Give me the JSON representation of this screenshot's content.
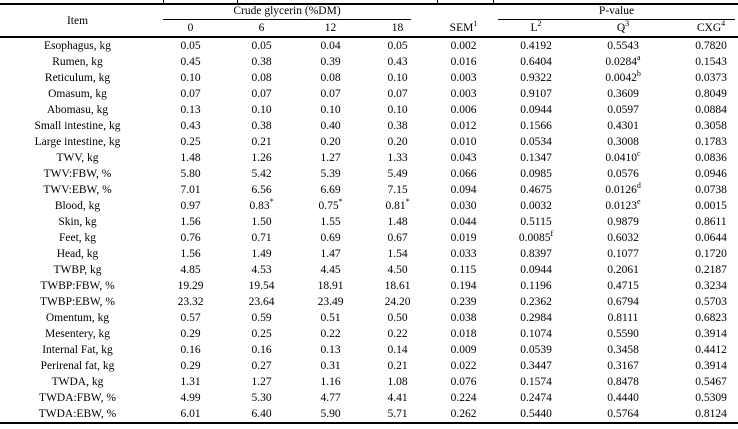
{
  "table": {
    "header": {
      "item": "Item",
      "group_glycerin": "Crude glycerin (%DM)",
      "group_pvalue": "P-value",
      "subcols": [
        {
          "label": "0",
          "sup": ""
        },
        {
          "label": "6",
          "sup": ""
        },
        {
          "label": "12",
          "sup": ""
        },
        {
          "label": "18",
          "sup": ""
        },
        {
          "label": "SEM",
          "sup": "1"
        },
        {
          "label": "L",
          "sup": "2"
        },
        {
          "label": "Q",
          "sup": "3"
        },
        {
          "label": "CXG",
          "sup": "4"
        }
      ]
    },
    "rows": [
      {
        "item": "Esophagus, kg",
        "values": [
          "0.05",
          "0.05",
          "0.04",
          "0.05",
          "0.002",
          "0.4192",
          "0.5543",
          "0.7820"
        ],
        "sups": {}
      },
      {
        "item": "Rumen, kg",
        "values": [
          "0.45",
          "0.38",
          "0.39",
          "0.43",
          "0.016",
          "0.6404",
          "0.0284",
          "0.1543"
        ],
        "sups": {
          "6": "a"
        }
      },
      {
        "item": "Reticulum, kg",
        "values": [
          "0.10",
          "0.08",
          "0.08",
          "0.10",
          "0.003",
          "0.9322",
          "0.0042",
          "0.0373"
        ],
        "sups": {
          "6": "b"
        }
      },
      {
        "item": "Omasum, kg",
        "values": [
          "0.07",
          "0.07",
          "0.07",
          "0.07",
          "0.003",
          "0.9107",
          "0.3609",
          "0.8049"
        ],
        "sups": {}
      },
      {
        "item": "Abomasu, kg",
        "values": [
          "0.13",
          "0.10",
          "0.10",
          "0.10",
          "0.006",
          "0.0944",
          "0.0597",
          "0.0884"
        ],
        "sups": {}
      },
      {
        "item": "Small intestine, kg",
        "values": [
          "0.43",
          "0.38",
          "0.40",
          "0.38",
          "0.012",
          "0.1566",
          "0.4301",
          "0.3058"
        ],
        "sups": {}
      },
      {
        "item": "Large intestine, kg",
        "values": [
          "0.25",
          "0.21",
          "0.20",
          "0.20",
          "0.010",
          "0.0534",
          "0.3008",
          "0.1783"
        ],
        "sups": {}
      },
      {
        "item": "TWV, kg",
        "values": [
          "1.48",
          "1.26",
          "1.27",
          "1.33",
          "0.043",
          "0.1347",
          "0.0410",
          "0.0836"
        ],
        "sups": {
          "6": "c"
        }
      },
      {
        "item": "TWV:FBW, %",
        "values": [
          "5.80",
          "5.42",
          "5.39",
          "5.49",
          "0.066",
          "0.0985",
          "0.0576",
          "0.0946"
        ],
        "sups": {}
      },
      {
        "item": "TWV:EBW, %",
        "values": [
          "7.01",
          "6.56",
          "6.69",
          "7.15",
          "0.094",
          "0.4675",
          "0.0126",
          "0.0738"
        ],
        "sups": {
          "6": "d"
        }
      },
      {
        "item": "Blood, kg",
        "values": [
          "0.97",
          "0.83",
          "0.75",
          "0.81",
          "0.030",
          "0.0032",
          "0.0123",
          "0.0015"
        ],
        "sups": {
          "1": "*",
          "2": "*",
          "3": "*",
          "6": "e"
        }
      },
      {
        "item": "Skin, kg",
        "values": [
          "1.56",
          "1.50",
          "1.55",
          "1.48",
          "0.044",
          "0.5115",
          "0.9879",
          "0.8611"
        ],
        "sups": {}
      },
      {
        "item": "Feet, kg",
        "values": [
          "0.76",
          "0.71",
          "0.69",
          "0.67",
          "0.019",
          "0.0085",
          "0.6032",
          "0.0644"
        ],
        "sups": {
          "5": "f"
        }
      },
      {
        "item": "Head, kg",
        "values": [
          "1.56",
          "1.49",
          "1.47",
          "1.54",
          "0.033",
          "0.8397",
          "0.1077",
          "0.1720"
        ],
        "sups": {}
      },
      {
        "item": "TWBP, kg",
        "values": [
          "4.85",
          "4.53",
          "4.45",
          "4.50",
          "0.115",
          "0.0944",
          "0.2061",
          "0.2187"
        ],
        "sups": {}
      },
      {
        "item": "TWBP:FBW, %",
        "values": [
          "19.29",
          "19.54",
          "18.91",
          "18.61",
          "0.194",
          "0.1196",
          "0.4715",
          "0.3234"
        ],
        "sups": {}
      },
      {
        "item": "TWBP:EBW, %",
        "values": [
          "23.32",
          "23.64",
          "23.49",
          "24.20",
          "0.239",
          "0.2362",
          "0.6794",
          "0.5703"
        ],
        "sups": {}
      },
      {
        "item": "Omentum, kg",
        "values": [
          "0.57",
          "0.59",
          "0.51",
          "0.50",
          "0.038",
          "0.2984",
          "0.8111",
          "0.6823"
        ],
        "sups": {}
      },
      {
        "item": "Mesentery, kg",
        "values": [
          "0.29",
          "0.25",
          "0.22",
          "0.22",
          "0.018",
          "0.1074",
          "0.5590",
          "0.3914"
        ],
        "sups": {}
      },
      {
        "item": "Internal Fat, kg",
        "values": [
          "0.16",
          "0.16",
          "0.13",
          "0.14",
          "0.009",
          "0.0539",
          "0.3458",
          "0.4412"
        ],
        "sups": {}
      },
      {
        "item": "Perirenal fat, kg",
        "values": [
          "0.29",
          "0.27",
          "0.31",
          "0.21",
          "0.022",
          "0.3447",
          "0.3167",
          "0.3914"
        ],
        "sups": {}
      },
      {
        "item": "TWDA, kg",
        "values": [
          "1.31",
          "1.27",
          "1.16",
          "1.08",
          "0.076",
          "0.1574",
          "0.8478",
          "0.5467"
        ],
        "sups": {}
      },
      {
        "item": "TWDA:FBW, %",
        "values": [
          "4.99",
          "5.30",
          "4.77",
          "4.41",
          "0.224",
          "0.2474",
          "0.4440",
          "0.5309"
        ],
        "sups": {}
      },
      {
        "item": "TWDA:EBW, %",
        "values": [
          "6.01",
          "6.40",
          "5.90",
          "5.71",
          "0.262",
          "0.5440",
          "0.5764",
          "0.8124"
        ],
        "sups": {}
      }
    ]
  }
}
